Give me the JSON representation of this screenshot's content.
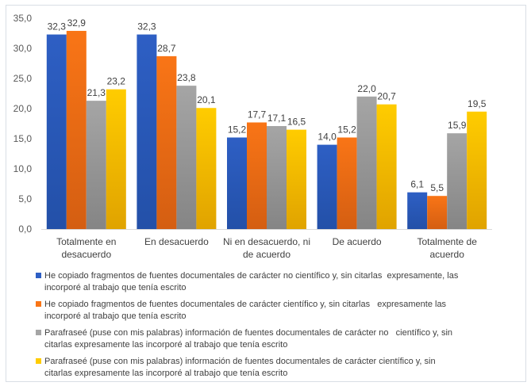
{
  "chart_data": {
    "type": "bar",
    "title": "",
    "xlabel": "",
    "ylabel": "",
    "ylim": [
      0,
      35
    ],
    "yticks": [
      "0,0",
      "5,0",
      "10,0",
      "15,0",
      "20,0",
      "25,0",
      "30,0",
      "35,0"
    ],
    "ytick_values": [
      0,
      5,
      10,
      15,
      20,
      25,
      30,
      35
    ],
    "grid": false,
    "legend_position": "bottom",
    "categories": [
      [
        "Totalmente en",
        "desacuerdo"
      ],
      [
        "En desacuerdo"
      ],
      [
        "Ni en desacuerdo, ni",
        "de acuerdo"
      ],
      [
        "De acuerdo"
      ],
      [
        "Totalmente de",
        "acuerdo"
      ]
    ],
    "series": [
      {
        "name": "He copiado fragmentos de fuentes documentales de carácter no científico y, sin citarlas  expresamente, las incorporé al trabajo que tenía escrito",
        "legend_lines": [
          "He copiado fragmentos de fuentes documentales de carácter no científico y, sin citarlas  expresamente, las",
          "incorporé al trabajo que tenía escrito"
        ],
        "color": "#2e5fc4",
        "color_dark": "#2350a8",
        "values": [
          32.3,
          32.3,
          15.2,
          14.0,
          6.1
        ],
        "labels": [
          "32,3",
          "32,3",
          "15,2",
          "14,0",
          "6,1"
        ]
      },
      {
        "name": "He copiado fragmentos de fuentes documentales de carácter científico y, sin citarlas   expresamente las incorporé al trabajo que tenía escrito",
        "legend_lines": [
          "He copiado fragmentos de fuentes documentales de carácter científico y, sin citarlas   expresamente las",
          "incorporé al trabajo que tenía escrito"
        ],
        "color": "#f97516",
        "color_dark": "#d45e12",
        "values": [
          32.9,
          28.7,
          17.7,
          15.2,
          5.5
        ],
        "labels": [
          "32,9",
          "28,7",
          "17,7",
          "15,2",
          "5,5"
        ]
      },
      {
        "name": "Parafraseé (puse con mis palabras) información de fuentes documentales de carácter no   científico y, sin citarlas expresamente las incorporé al trabajo que tenía escrito",
        "legend_lines": [
          "Parafraseé (puse con mis palabras) información de fuentes documentales de carácter no   científico y, sin",
          "citarlas expresamente las incorporé al trabajo que tenía escrito"
        ],
        "color": "#a5a5a5",
        "color_dark": "#858585",
        "values": [
          21.3,
          23.8,
          17.1,
          22.0,
          15.9
        ],
        "labels": [
          "21,3",
          "23,8",
          "17,1",
          "22,0",
          "15,9"
        ]
      },
      {
        "name": "Parafraseé (puse con mis palabras) información de fuentes documentales de carácter científico y, sin citarlas expresamente las incorporé al trabajo que tenía escrito",
        "legend_lines": [
          "Parafraseé (puse con mis palabras) información de fuentes documentales de carácter científico y, sin",
          "citarlas expresamente las incorporé al trabajo que tenía escrito"
        ],
        "color": "#ffcc00",
        "color_dark": "#e0a300",
        "values": [
          23.2,
          20.1,
          16.5,
          20.7,
          19.5
        ],
        "labels": [
          "23,2",
          "20,1",
          "16,5",
          "20,7",
          "19,5"
        ]
      }
    ]
  }
}
